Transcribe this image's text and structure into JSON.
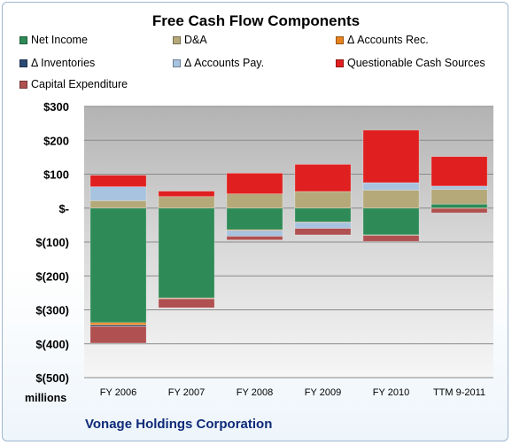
{
  "chart_data": {
    "type": "bar",
    "stacked": true,
    "title": "Free Cash Flow Components",
    "categories": [
      "FY 2006",
      "FY 2007",
      "FY 2008",
      "FY 2009",
      "FY 2010",
      "TTM 9-2011"
    ],
    "ylim": [
      -500,
      300
    ],
    "yticks": [
      300,
      200,
      100,
      0,
      -100,
      -200,
      -300,
      -400,
      -500
    ],
    "ytick_labels": [
      "$300",
      "$200",
      "$100",
      "$-",
      "$(100)",
      "$(200)",
      "$(300)",
      "$(400)",
      "$(500)"
    ],
    "units_label": "millions",
    "grid": true,
    "legend_position": "top",
    "series": [
      {
        "name": "Net Income",
        "color": "#2e8b57",
        "values": [
          -338,
          -265,
          -64,
          -41,
          -79,
          12
        ]
      },
      {
        "name": "D&A",
        "color": "#b5a97a",
        "values": [
          22,
          34,
          42,
          49,
          53,
          43
        ]
      },
      {
        "name": "Δ Accounts Rec.",
        "color": "#e8821e",
        "values": [
          -7,
          -2,
          -2,
          -1,
          -1,
          -1
        ]
      },
      {
        "name": "Δ Inventories",
        "color": "#2b4a73",
        "values": [
          -4,
          -1,
          -1,
          -1,
          -1,
          0
        ]
      },
      {
        "name": "Δ Accounts Pay.",
        "color": "#a8c3e0",
        "values": [
          41,
          0,
          -16,
          -17,
          22,
          10
        ]
      },
      {
        "name": "Questionable Cash Sources",
        "color": "#e02020",
        "values": [
          34,
          16,
          61,
          80,
          155,
          87
        ]
      },
      {
        "name": "Capital Expenditure",
        "color": "#b05050",
        "values": [
          -49,
          -26,
          -11,
          -19,
          -17,
          -13
        ]
      }
    ]
  },
  "company": "Vonage Holdings Corporation"
}
